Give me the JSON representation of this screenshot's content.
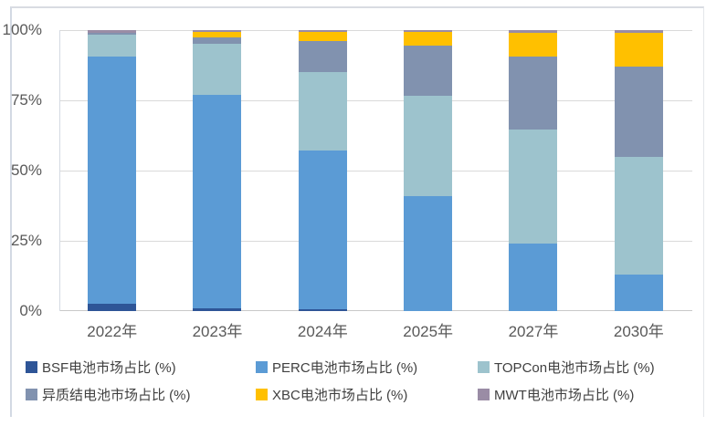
{
  "chart_data": {
    "type": "bar",
    "stacked": true,
    "percent_stack": true,
    "title": "",
    "xlabel": "",
    "ylabel": "",
    "ylim": [
      0,
      100
    ],
    "grid": true,
    "legend_position": "bottom",
    "yticks": [
      "0%",
      "25%",
      "50%",
      "75%",
      "100%"
    ],
    "categories": [
      "2022年",
      "2023年",
      "2024年",
      "2025年",
      "2027年",
      "2030年"
    ],
    "series": [
      {
        "name": "BSF电池市场占比（%）",
        "label": "BSF电池市场占比 (%)",
        "color": "#2E5597",
        "values": [
          2.5,
          1,
          0.5,
          0,
          0,
          0
        ]
      },
      {
        "name": "PERC电池市场占比（%）",
        "label": "PERC电池市场占比 (%)",
        "color": "#5B9BD5",
        "values": [
          88,
          76,
          56.5,
          41,
          24,
          13
        ]
      },
      {
        "name": "TOPCon电池市场占比（%）",
        "label": "TOPCon电池市场占比 (%)",
        "color": "#9DC3CD",
        "values": [
          8,
          18,
          28,
          35.5,
          40.5,
          42
        ]
      },
      {
        "name": "异质结电池市场占比（%）",
        "label": "异质结电池市场占比 (%)",
        "color": "#8192AF",
        "values": [
          0.5,
          2.5,
          11,
          18,
          26,
          32
        ]
      },
      {
        "name": "XBC电池市场占比（%）",
        "label": "XBC电池市场占比 (%)",
        "color": "#FFC000",
        "values": [
          0.2,
          2,
          3.5,
          5,
          8.5,
          12
        ]
      },
      {
        "name": "MWT电池市场占比（%）",
        "label": "MWT电池市场占比 (%)",
        "color": "#9A8CA5",
        "values": [
          0.8,
          0.5,
          0.5,
          0.5,
          1,
          1
        ]
      }
    ],
    "colors": {
      "gridline": "#DADADA",
      "axis_text": "#595959",
      "legend_text": "#404040",
      "frame_border": "#D3D9E3",
      "background": "#FFFFFF"
    }
  }
}
